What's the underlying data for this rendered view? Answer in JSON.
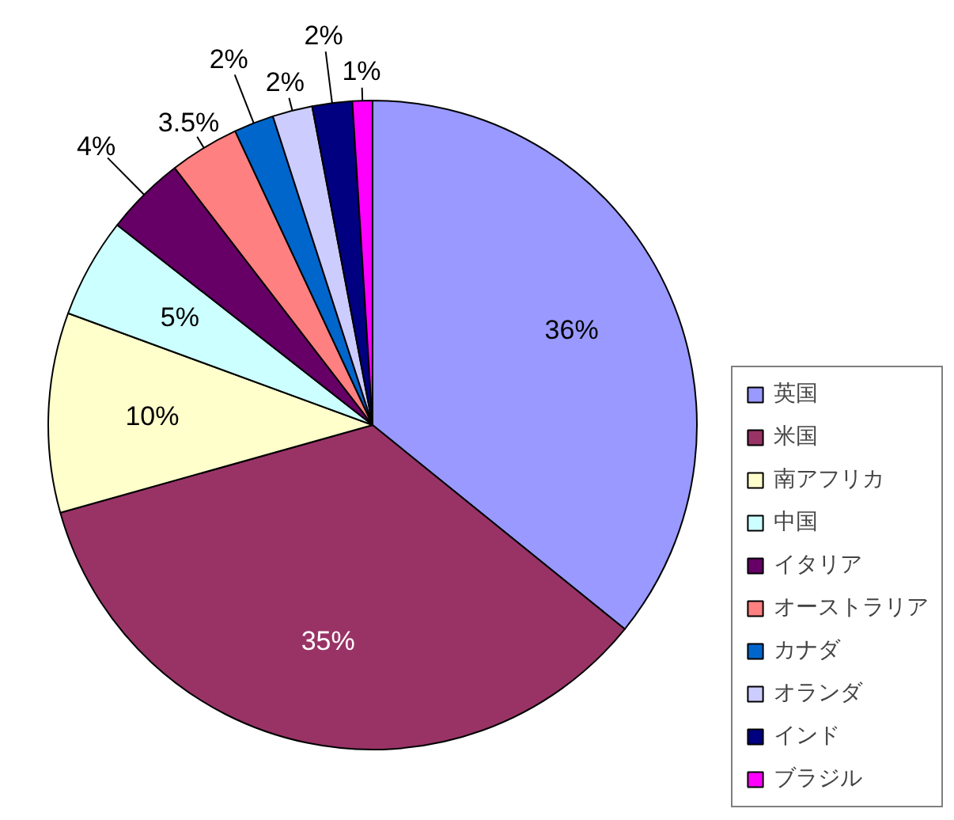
{
  "chart_data": {
    "type": "pie",
    "categories": [
      "英国",
      "米国",
      "南アフリカ",
      "中国",
      "イタリア",
      "オーストラリア",
      "カナダ",
      "オランダ",
      "インド",
      "ブラジル"
    ],
    "values": [
      36,
      35,
      10,
      5,
      4,
      3.5,
      2,
      2,
      2,
      1
    ],
    "value_labels": [
      "36%",
      "35%",
      "10%",
      "5%",
      "4%",
      "3.5%",
      "2%",
      "2%",
      "2%",
      "1%"
    ],
    "colors": [
      "#9999ff",
      "#993366",
      "#ffffcc",
      "#ccffff",
      "#660066",
      "#ff8080",
      "#0066cc",
      "#ccccff",
      "#000080",
      "#ff00ff"
    ],
    "legend": "right"
  }
}
